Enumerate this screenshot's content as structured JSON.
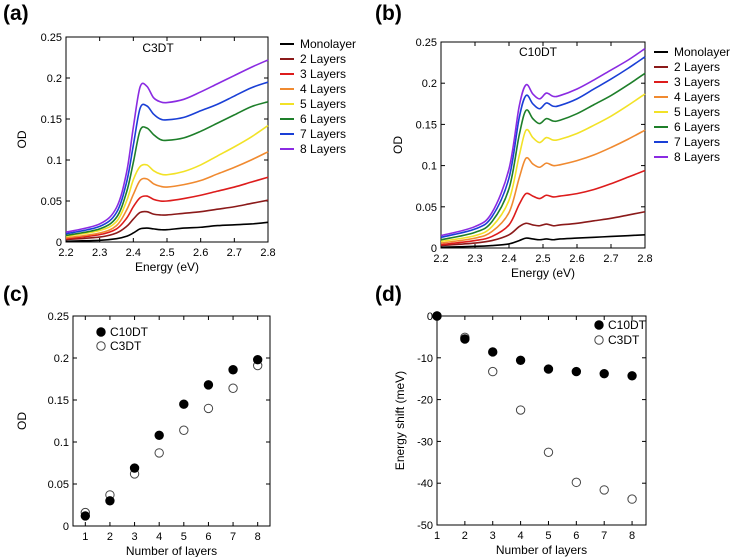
{
  "chart_data": [
    {
      "id": "a",
      "panel_label": "(a)",
      "type": "line",
      "title": "C3DT",
      "xlabel": "Energy (eV)",
      "ylabel": "OD",
      "xlim": [
        2.2,
        2.8
      ],
      "ylim": [
        0,
        0.25
      ],
      "xticks": [
        2.2,
        2.3,
        2.4,
        2.5,
        2.6,
        2.7,
        2.8
      ],
      "xtick_labels": [
        "2.2",
        "2.3",
        "2.4",
        "2.5",
        "2.6",
        "2.7",
        "2.8"
      ],
      "yticks": [
        0,
        0.05,
        0.1,
        0.15,
        0.2,
        0.25
      ],
      "ytick_labels": [
        "0",
        "0.05",
        "0.1",
        "0.15",
        "0.2",
        "0.25"
      ],
      "legend_position": "right",
      "x": [
        2.2,
        2.3,
        2.35,
        2.38,
        2.4,
        2.42,
        2.44,
        2.46,
        2.48,
        2.5,
        2.55,
        2.6,
        2.65,
        2.7,
        2.75,
        2.8
      ],
      "series": [
        {
          "name": "Monolayer",
          "color": "#000000",
          "values": [
            0.001,
            0.002,
            0.004,
            0.007,
            0.011,
            0.016,
            0.017,
            0.016,
            0.015,
            0.015,
            0.017,
            0.018,
            0.02,
            0.021,
            0.022,
            0.024
          ]
        },
        {
          "name": "2 Layers",
          "color": "#8b1a1a",
          "values": [
            0.003,
            0.006,
            0.011,
            0.019,
            0.028,
            0.036,
            0.037,
            0.034,
            0.033,
            0.033,
            0.035,
            0.037,
            0.04,
            0.043,
            0.047,
            0.051
          ]
        },
        {
          "name": "3 Layers",
          "color": "#dd1c1c",
          "values": [
            0.004,
            0.009,
            0.016,
            0.029,
            0.043,
            0.054,
            0.056,
            0.052,
            0.05,
            0.05,
            0.053,
            0.057,
            0.062,
            0.067,
            0.073,
            0.079
          ]
        },
        {
          "name": "4 Layers",
          "color": "#f08a30",
          "values": [
            0.005,
            0.011,
            0.02,
            0.039,
            0.058,
            0.075,
            0.077,
            0.071,
            0.068,
            0.067,
            0.07,
            0.075,
            0.083,
            0.091,
            0.1,
            0.11
          ]
        },
        {
          "name": "5 Layers",
          "color": "#f2e227",
          "values": [
            0.007,
            0.014,
            0.025,
            0.05,
            0.076,
            0.092,
            0.094,
            0.087,
            0.083,
            0.082,
            0.086,
            0.094,
            0.105,
            0.116,
            0.128,
            0.142
          ]
        },
        {
          "name": "6 Layers",
          "color": "#1e7f2a",
          "values": [
            0.008,
            0.016,
            0.03,
            0.061,
            0.097,
            0.136,
            0.139,
            0.131,
            0.125,
            0.124,
            0.127,
            0.135,
            0.145,
            0.155,
            0.165,
            0.171
          ]
        },
        {
          "name": "7 Layers",
          "color": "#1a3fd6",
          "values": [
            0.01,
            0.019,
            0.036,
            0.073,
            0.118,
            0.163,
            0.166,
            0.156,
            0.15,
            0.149,
            0.152,
            0.16,
            0.168,
            0.178,
            0.188,
            0.195
          ]
        },
        {
          "name": "8 Layers",
          "color": "#8a2be2",
          "values": [
            0.012,
            0.022,
            0.042,
            0.085,
            0.14,
            0.189,
            0.19,
            0.176,
            0.171,
            0.17,
            0.174,
            0.183,
            0.193,
            0.203,
            0.213,
            0.222
          ]
        }
      ]
    },
    {
      "id": "b",
      "panel_label": "(b)",
      "type": "line",
      "title": "C10DT",
      "xlabel": "Energy (eV)",
      "ylabel": "OD",
      "xlim": [
        2.2,
        2.8
      ],
      "ylim": [
        0,
        0.25
      ],
      "xticks": [
        2.2,
        2.3,
        2.4,
        2.5,
        2.6,
        2.7,
        2.8
      ],
      "xtick_labels": [
        "2.2",
        "2.3",
        "2.4",
        "2.5",
        "2.6",
        "2.7",
        "2.8"
      ],
      "yticks": [
        0,
        0.05,
        0.1,
        0.15,
        0.2,
        0.25
      ],
      "ytick_labels": [
        "0",
        "0.05",
        "0.1",
        "0.15",
        "0.2",
        "0.25"
      ],
      "legend_position": "right",
      "x": [
        2.2,
        2.3,
        2.35,
        2.4,
        2.43,
        2.45,
        2.47,
        2.49,
        2.51,
        2.53,
        2.55,
        2.6,
        2.65,
        2.7,
        2.75,
        2.8
      ],
      "series": [
        {
          "name": "Monolayer",
          "color": "#000000",
          "values": [
            0.001,
            0.002,
            0.003,
            0.005,
            0.009,
            0.012,
            0.011,
            0.01,
            0.011,
            0.01,
            0.011,
            0.012,
            0.013,
            0.014,
            0.015,
            0.016
          ]
        },
        {
          "name": "2 Layers",
          "color": "#8b1a1a",
          "values": [
            0.003,
            0.006,
            0.009,
            0.016,
            0.026,
            0.03,
            0.028,
            0.027,
            0.029,
            0.027,
            0.028,
            0.03,
            0.033,
            0.036,
            0.04,
            0.044
          ]
        },
        {
          "name": "3 Layers",
          "color": "#dd1c1c",
          "values": [
            0.004,
            0.009,
            0.014,
            0.028,
            0.053,
            0.066,
            0.063,
            0.06,
            0.064,
            0.062,
            0.063,
            0.066,
            0.071,
            0.078,
            0.086,
            0.094
          ]
        },
        {
          "name": "4 Layers",
          "color": "#f08a30",
          "values": [
            0.006,
            0.012,
            0.02,
            0.043,
            0.085,
            0.109,
            0.102,
            0.098,
            0.103,
            0.1,
            0.101,
            0.106,
            0.113,
            0.122,
            0.132,
            0.143
          ]
        },
        {
          "name": "5 Layers",
          "color": "#f2e227",
          "values": [
            0.008,
            0.015,
            0.026,
            0.058,
            0.112,
            0.143,
            0.134,
            0.128,
            0.134,
            0.131,
            0.132,
            0.139,
            0.149,
            0.16,
            0.173,
            0.187
          ]
        },
        {
          "name": "6 Layers",
          "color": "#1e7f2a",
          "values": [
            0.01,
            0.019,
            0.032,
            0.072,
            0.137,
            0.167,
            0.157,
            0.151,
            0.157,
            0.154,
            0.155,
            0.163,
            0.174,
            0.185,
            0.198,
            0.212
          ]
        },
        {
          "name": "7 Layers",
          "color": "#1a3fd6",
          "values": [
            0.013,
            0.023,
            0.038,
            0.085,
            0.158,
            0.185,
            0.175,
            0.169,
            0.176,
            0.172,
            0.173,
            0.181,
            0.193,
            0.205,
            0.218,
            0.232
          ]
        },
        {
          "name": "8 Layers",
          "color": "#8a2be2",
          "values": [
            0.015,
            0.026,
            0.043,
            0.096,
            0.172,
            0.198,
            0.187,
            0.181,
            0.188,
            0.184,
            0.185,
            0.193,
            0.204,
            0.216,
            0.228,
            0.242
          ]
        }
      ]
    },
    {
      "id": "c",
      "panel_label": "(c)",
      "type": "scatter",
      "title": "",
      "xlabel": "Number of layers",
      "ylabel": "OD",
      "xlim": [
        0.5,
        8.5
      ],
      "ylim": [
        0,
        0.25
      ],
      "xticks": [
        1,
        2,
        3,
        4,
        5,
        6,
        7,
        8
      ],
      "xtick_labels": [
        "1",
        "2",
        "3",
        "4",
        "5",
        "6",
        "7",
        "8"
      ],
      "yticks": [
        0,
        0.05,
        0.1,
        0.15,
        0.2,
        0.25
      ],
      "ytick_labels": [
        "0",
        "0.05",
        "0.1",
        "0.15",
        "0.2",
        "0.25"
      ],
      "legend_position": "top-left",
      "x": [
        1,
        2,
        3,
        4,
        5,
        6,
        7,
        8
      ],
      "series": [
        {
          "name": "C10DT",
          "marker": "filled",
          "values": [
            0.012,
            0.03,
            0.069,
            0.108,
            0.145,
            0.168,
            0.186,
            0.198
          ]
        },
        {
          "name": "C3DT",
          "marker": "open",
          "values": [
            0.016,
            0.037,
            0.062,
            0.087,
            0.114,
            0.14,
            0.164,
            0.191
          ]
        }
      ]
    },
    {
      "id": "d",
      "panel_label": "(d)",
      "type": "scatter",
      "title": "",
      "xlabel": "Number of layers",
      "ylabel": "Energy shift (meV)",
      "xlim": [
        1,
        8.5
      ],
      "ylim": [
        -50,
        0
      ],
      "xticks": [
        1,
        2,
        3,
        4,
        5,
        6,
        7,
        8
      ],
      "xtick_labels": [
        "1",
        "2",
        "3",
        "4",
        "5",
        "6",
        "7",
        "8"
      ],
      "yticks": [
        0,
        -10,
        -20,
        -30,
        -40,
        -50
      ],
      "ytick_labels": [
        "0",
        "-10",
        "-20",
        "-30",
        "-40",
        "-50"
      ],
      "legend_position": "top-right",
      "x": [
        1,
        2,
        3,
        4,
        5,
        6,
        7,
        8
      ],
      "series": [
        {
          "name": "C10DT",
          "marker": "filled",
          "values": [
            0,
            -5.5,
            -8.6,
            -10.6,
            -12.7,
            -13.3,
            -13.8,
            -14.3
          ]
        },
        {
          "name": "C3DT",
          "marker": "open",
          "values": [
            0,
            -5.1,
            -13.3,
            -22.5,
            -32.6,
            -39.8,
            -41.6,
            -43.8
          ]
        }
      ]
    }
  ]
}
